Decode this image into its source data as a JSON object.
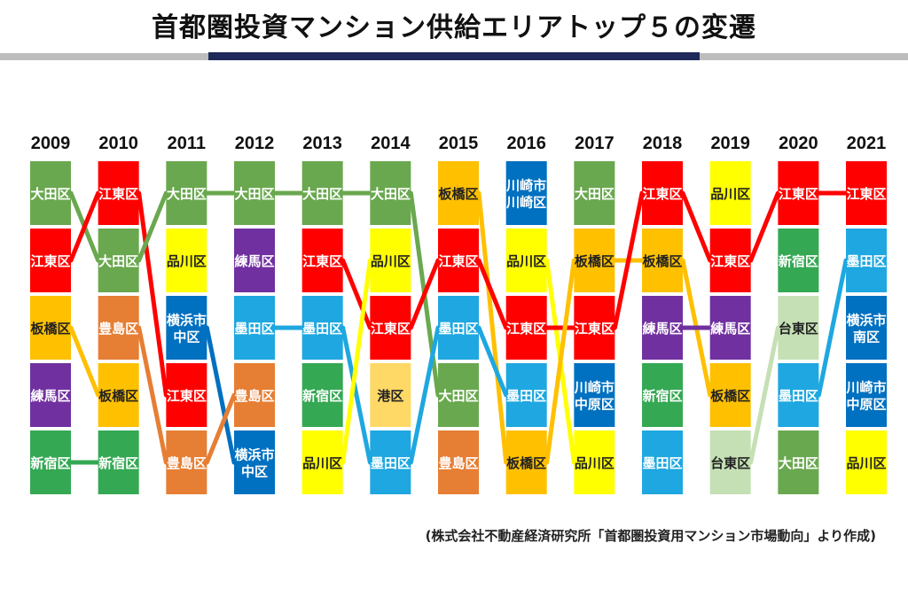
{
  "title": "首都圏投資マンション供給エリアトップ５の変遷",
  "source": "(株式会社不動産経済研究所「首都圏投資用マンション市場動向」より作成)",
  "colors": {
    "大田区": "#6aa84f",
    "江東区": "#ff0000",
    "板橋区": "#ffc000",
    "練馬区": "#7030a0",
    "新宿区": "#34a853",
    "豊島区": "#e67e34",
    "品川区": "#ffff00",
    "横浜市中区": "#0070c0",
    "墨田区": "#1ea7e0",
    "港区": "#ffd966",
    "川崎市川崎区": "#0070c0",
    "川崎市中原区": "#0070c0",
    "台東区": "#c5e0b4",
    "横浜市南区": "#0070c0"
  },
  "chart_data": {
    "type": "table",
    "years": [
      "2009",
      "2010",
      "2011",
      "2012",
      "2013",
      "2014",
      "2015",
      "2016",
      "2017",
      "2018",
      "2019",
      "2020",
      "2021"
    ],
    "rankings": [
      [
        {
          "label": "大田区",
          "area": "大田区"
        },
        {
          "label": "江東区",
          "area": "江東区"
        },
        {
          "label": "板橋区",
          "area": "板橋区"
        },
        {
          "label": "練馬区",
          "area": "練馬区"
        },
        {
          "label": "新宿区",
          "area": "新宿区"
        }
      ],
      [
        {
          "label": "江東区",
          "area": "江東区"
        },
        {
          "label": "大田区",
          "area": "大田区"
        },
        {
          "label": "豊島区",
          "area": "豊島区"
        },
        {
          "label": "板橋区",
          "area": "板橋区"
        },
        {
          "label": "新宿区",
          "area": "新宿区"
        }
      ],
      [
        {
          "label": "大田区",
          "area": "大田区"
        },
        {
          "label": "品川区",
          "area": "品川区"
        },
        {
          "label": "横浜市\n中区",
          "area": "横浜市中区"
        },
        {
          "label": "江東区",
          "area": "江東区"
        },
        {
          "label": "豊島区",
          "area": "豊島区"
        }
      ],
      [
        {
          "label": "大田区",
          "area": "大田区"
        },
        {
          "label": "練馬区",
          "area": "練馬区"
        },
        {
          "label": "墨田区",
          "area": "墨田区"
        },
        {
          "label": "豊島区",
          "area": "豊島区"
        },
        {
          "label": "横浜市\n中区",
          "area": "横浜市中区"
        }
      ],
      [
        {
          "label": "大田区",
          "area": "大田区"
        },
        {
          "label": "江東区",
          "area": "江東区"
        },
        {
          "label": "墨田区",
          "area": "墨田区"
        },
        {
          "label": "新宿区",
          "area": "新宿区"
        },
        {
          "label": "品川区",
          "area": "品川区"
        }
      ],
      [
        {
          "label": "大田区",
          "area": "大田区"
        },
        {
          "label": "品川区",
          "area": "品川区"
        },
        {
          "label": "江東区",
          "area": "江東区"
        },
        {
          "label": "港区",
          "area": "港区"
        },
        {
          "label": "墨田区",
          "area": "墨田区"
        }
      ],
      [
        {
          "label": "板橋区",
          "area": "板橋区"
        },
        {
          "label": "江東区",
          "area": "江東区"
        },
        {
          "label": "墨田区",
          "area": "墨田区"
        },
        {
          "label": "大田区",
          "area": "大田区"
        },
        {
          "label": "豊島区",
          "area": "豊島区"
        }
      ],
      [
        {
          "label": "川崎市\n川崎区",
          "area": "川崎市川崎区"
        },
        {
          "label": "品川区",
          "area": "品川区"
        },
        {
          "label": "江東区",
          "area": "江東区"
        },
        {
          "label": "墨田区",
          "area": "墨田区"
        },
        {
          "label": "板橋区",
          "area": "板橋区"
        }
      ],
      [
        {
          "label": "大田区",
          "area": "大田区"
        },
        {
          "label": "板橋区",
          "area": "板橋区"
        },
        {
          "label": "江東区",
          "area": "江東区"
        },
        {
          "label": "川崎市\n中原区",
          "area": "川崎市中原区"
        },
        {
          "label": "品川区",
          "area": "品川区"
        }
      ],
      [
        {
          "label": "江東区",
          "area": "江東区"
        },
        {
          "label": "板橋区",
          "area": "板橋区"
        },
        {
          "label": "練馬区",
          "area": "練馬区"
        },
        {
          "label": "新宿区",
          "area": "新宿区"
        },
        {
          "label": "墨田区",
          "area": "墨田区"
        }
      ],
      [
        {
          "label": "品川区",
          "area": "品川区"
        },
        {
          "label": "江東区",
          "area": "江東区"
        },
        {
          "label": "練馬区",
          "area": "練馬区"
        },
        {
          "label": "板橋区",
          "area": "板橋区"
        },
        {
          "label": "台東区",
          "area": "台東区"
        }
      ],
      [
        {
          "label": "江東区",
          "area": "江東区"
        },
        {
          "label": "新宿区",
          "area": "新宿区"
        },
        {
          "label": "台東区",
          "area": "台東区"
        },
        {
          "label": "墨田区",
          "area": "墨田区"
        },
        {
          "label": "大田区",
          "area": "大田区"
        }
      ],
      [
        {
          "label": "江東区",
          "area": "江東区"
        },
        {
          "label": "墨田区",
          "area": "墨田区"
        },
        {
          "label": "横浜市\n南区",
          "area": "横浜市南区"
        },
        {
          "label": "川崎市\n中原区",
          "area": "川崎市中原区"
        },
        {
          "label": "品川区",
          "area": "品川区"
        }
      ]
    ]
  }
}
